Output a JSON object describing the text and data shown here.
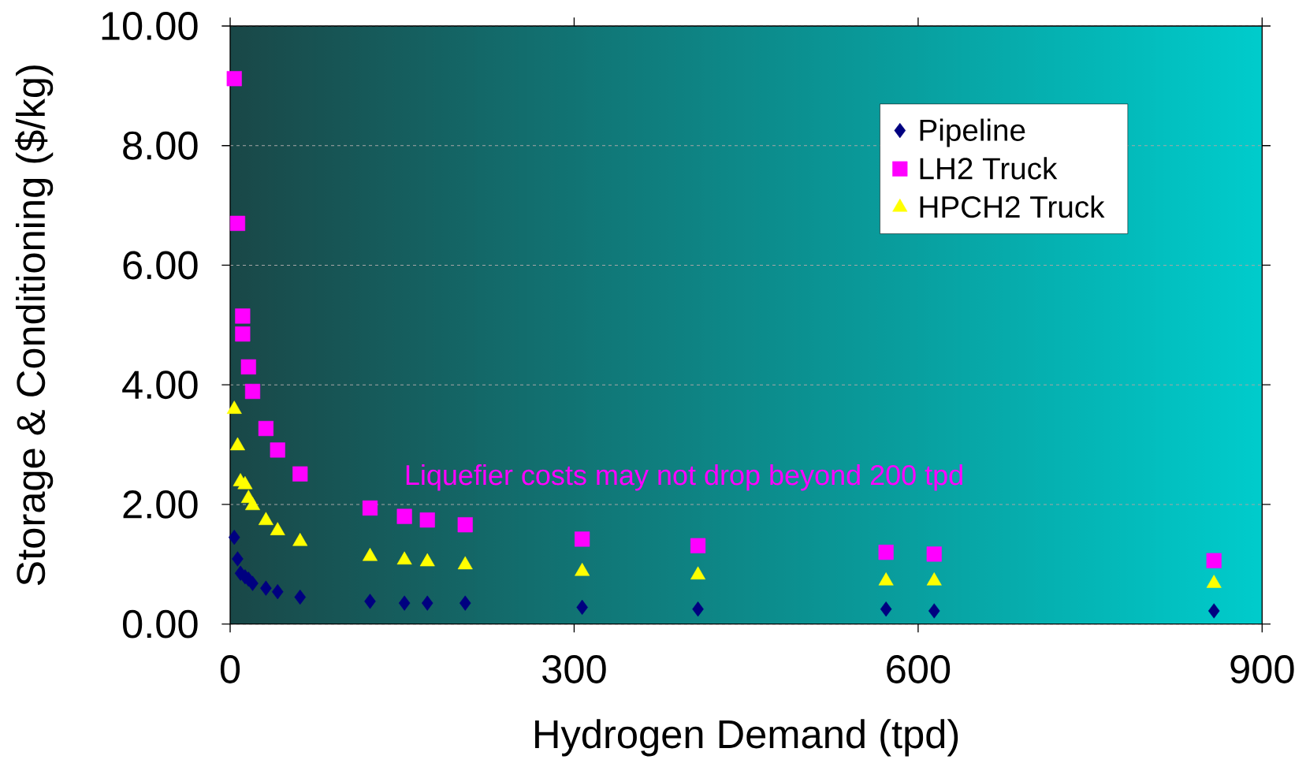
{
  "chart_data": {
    "type": "scatter",
    "xlabel": "Hydrogen Demand (tpd)",
    "ylabel": "Storage & Conditioning ($/kg)",
    "xlim": [
      0,
      900
    ],
    "ylim": [
      0,
      10
    ],
    "xticks": [
      0,
      300,
      600,
      900
    ],
    "yticks": [
      {
        "value": 0,
        "label": "0.00"
      },
      {
        "value": 2,
        "label": "2.00"
      },
      {
        "value": 4,
        "label": "4.00"
      },
      {
        "value": 6,
        "label": "6.00"
      },
      {
        "value": 8,
        "label": "8.00"
      },
      {
        "value": 10,
        "label": "10.00"
      }
    ],
    "grid": "y",
    "legend": "top right",
    "annotations": [
      "Liquefier costs may not drop beyond 200 tpd"
    ],
    "series": [
      {
        "name": "Pipeline",
        "color": "#000080",
        "marker": "diamond",
        "x": [
          3.6,
          6.5,
          9,
          13,
          16,
          19.6,
          31.2,
          41.4,
          61,
          122,
          152,
          172,
          205,
          307,
          408,
          572,
          614,
          858
        ],
        "values": [
          1.45,
          1.09,
          0.85,
          0.79,
          0.75,
          0.68,
          0.6,
          0.54,
          0.45,
          0.38,
          0.35,
          0.35,
          0.35,
          0.28,
          0.25,
          0.25,
          0.22,
          0.22
        ]
      },
      {
        "name": "LH2 Truck",
        "color": "#ff00ff",
        "marker": "square",
        "x": [
          3.6,
          6.5,
          10.9,
          10.9,
          16,
          19.6,
          31.2,
          41.4,
          61,
          122,
          152,
          172,
          205,
          307,
          408,
          572,
          614,
          858
        ],
        "values": [
          9.12,
          6.7,
          5.15,
          4.85,
          4.3,
          3.89,
          3.27,
          2.91,
          2.51,
          1.94,
          1.8,
          1.74,
          1.66,
          1.42,
          1.31,
          1.2,
          1.17,
          1.06
        ]
      },
      {
        "name": "HPCH2 Truck",
        "color": "#ffff00",
        "marker": "triangle",
        "x": [
          3.6,
          6.5,
          9,
          13,
          16,
          19.6,
          31.2,
          41.4,
          61,
          122,
          152,
          172,
          205,
          307,
          408,
          572,
          614,
          858
        ],
        "values": [
          3.59,
          2.98,
          2.38,
          2.33,
          2.1,
          1.98,
          1.73,
          1.56,
          1.38,
          1.13,
          1.07,
          1.04,
          0.99,
          0.88,
          0.82,
          0.72,
          0.72,
          0.68
        ]
      }
    ]
  }
}
